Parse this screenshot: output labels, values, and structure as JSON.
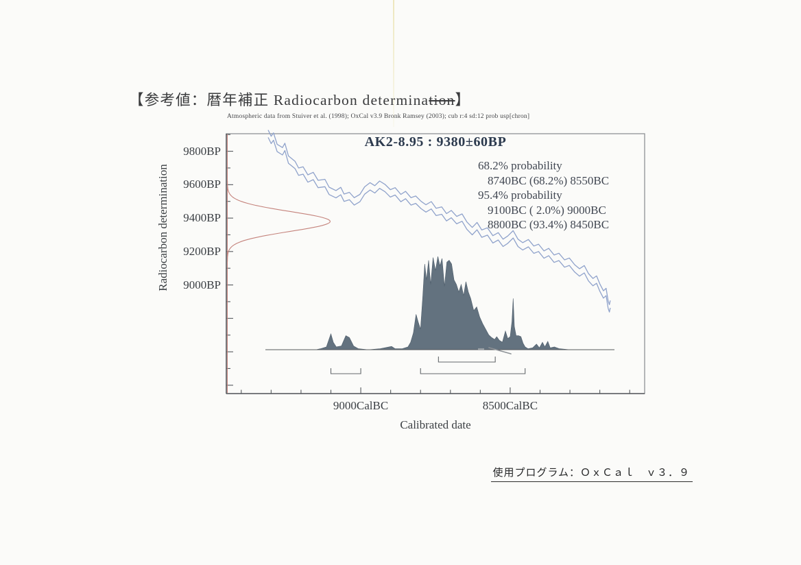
{
  "page": {
    "title": {
      "prefix": "【参考値：暦年補正 Radiocarbon determina",
      "struck": "tion",
      "suffix": "】"
    },
    "footer": {
      "text": "使用プログラム：ＯｘＣａｌ　ｖ３．９"
    }
  },
  "chart": {
    "attribution": "Atmospheric data from Stuiver et al. (1998); OxCal v3.9 Bronk Ramsey (2003); cub r:4 sd:12 prob usp[chron]",
    "title": "AK2-8.95 : 9380±60BP",
    "probability_lines": [
      {
        "text": "68.2% probability",
        "indent": false
      },
      {
        "text": "8740BC (68.2%) 8550BC",
        "indent": true
      },
      {
        "text": "95.4% probability",
        "indent": false
      },
      {
        "text": "9100BC ( 2.0%) 9000BC",
        "indent": true
      },
      {
        "text": "8800BC (93.4%) 8450BC",
        "indent": true
      }
    ],
    "x_axis_title": "Calibrated date",
    "y_axis_title": "Radiocarbon determination"
  },
  "chart_data": {
    "type": "area",
    "title": "AK2-8.95 : 9380±60BP",
    "xlabel": "Calibrated date",
    "ylabel": "Radiocarbon determination",
    "x_axis": {
      "unit": "CalBC",
      "range": [
        9450,
        8050
      ],
      "minor_tick_step": 100,
      "major_tick_step": 500,
      "major_ticks": [
        {
          "value": 9000,
          "label": "9000CalBC"
        },
        {
          "value": 8500,
          "label": "8500CalBC"
        }
      ]
    },
    "y_axis": {
      "unit": "BP",
      "range": [
        9905,
        8350
      ],
      "minor_tick_step": 100,
      "major_tick_step": 200,
      "labeled_ticks": [
        {
          "value": 9800,
          "label": "9800BP"
        },
        {
          "value": 9600,
          "label": "9600BP"
        },
        {
          "value": 9400,
          "label": "9400BP"
        },
        {
          "value": 9200,
          "label": "9200BP"
        },
        {
          "value": 9000,
          "label": "9000BP"
        }
      ]
    },
    "radiocarbon_determination": {
      "mean_bp": 9380,
      "sigma_bp": 60,
      "color": "#c4827b"
    },
    "calibration_curve": {
      "color": "#8fa2cb",
      "band_halfwidth_bp": 22,
      "points": [
        [
          9310,
          9905
        ],
        [
          9300,
          9868
        ],
        [
          9292,
          9888
        ],
        [
          9280,
          9820
        ],
        [
          9262,
          9800
        ],
        [
          9254,
          9826
        ],
        [
          9242,
          9750
        ],
        [
          9220,
          9718
        ],
        [
          9208,
          9678
        ],
        [
          9193,
          9685
        ],
        [
          9177,
          9637
        ],
        [
          9159,
          9652
        ],
        [
          9143,
          9604
        ],
        [
          9120,
          9610
        ],
        [
          9106,
          9563
        ],
        [
          9083,
          9543
        ],
        [
          9067,
          9562
        ],
        [
          9056,
          9522
        ],
        [
          9038,
          9532
        ],
        [
          9022,
          9500
        ],
        [
          9003,
          9520
        ],
        [
          8987,
          9565
        ],
        [
          8969,
          9590
        ],
        [
          8953,
          9572
        ],
        [
          8937,
          9600
        ],
        [
          8919,
          9580
        ],
        [
          8901,
          9548
        ],
        [
          8885,
          9560
        ],
        [
          8866,
          9520
        ],
        [
          8850,
          9538
        ],
        [
          8832,
          9500
        ],
        [
          8816,
          9510
        ],
        [
          8798,
          9478
        ],
        [
          8782,
          9458
        ],
        [
          8764,
          9477
        ],
        [
          8748,
          9437
        ],
        [
          8729,
          9445
        ],
        [
          8713,
          9405
        ],
        [
          8697,
          9424
        ],
        [
          8679,
          9388
        ],
        [
          8661,
          9403
        ],
        [
          8645,
          9355
        ],
        [
          8627,
          9322
        ],
        [
          8611,
          9352
        ],
        [
          8595,
          9307
        ],
        [
          8576,
          9320
        ],
        [
          8558,
          9273
        ],
        [
          8540,
          9291
        ],
        [
          8524,
          9252
        ],
        [
          8508,
          9271
        ],
        [
          8490,
          9303
        ],
        [
          8474,
          9252
        ],
        [
          8458,
          9231
        ],
        [
          8439,
          9250
        ],
        [
          8421,
          9211
        ],
        [
          8405,
          9222
        ],
        [
          8387,
          9182
        ],
        [
          8371,
          9197
        ],
        [
          8353,
          9157
        ],
        [
          8337,
          9168
        ],
        [
          8318,
          9128
        ],
        [
          8302,
          9139
        ],
        [
          8284,
          9099
        ],
        [
          8268,
          9075
        ],
        [
          8252,
          9094
        ],
        [
          8238,
          9046
        ],
        [
          8223,
          9017
        ],
        [
          8211,
          9032
        ],
        [
          8200,
          8985
        ],
        [
          8188,
          8943
        ],
        [
          8179,
          8958
        ],
        [
          8172,
          8882
        ],
        [
          8168,
          8860
        ],
        [
          8165,
          8885
        ]
      ]
    },
    "calibrated_distribution": {
      "color": "#5d6c7a",
      "baseline_bp": 8613,
      "peak_bp": 9170,
      "points": [
        [
          9150,
          0
        ],
        [
          9135,
          0.01
        ],
        [
          9115,
          0.03
        ],
        [
          9100,
          0.17
        ],
        [
          9092,
          0.08
        ],
        [
          9082,
          0.03
        ],
        [
          9065,
          0.04
        ],
        [
          9050,
          0.15
        ],
        [
          9038,
          0.13
        ],
        [
          9024,
          0.04
        ],
        [
          9008,
          0.01
        ],
        [
          8975,
          0
        ],
        [
          8935,
          0.01
        ],
        [
          8897,
          0.035
        ],
        [
          8885,
          0.01
        ],
        [
          8862,
          0.01
        ],
        [
          8842,
          0.03
        ],
        [
          8833,
          0.08
        ],
        [
          8824,
          0.18
        ],
        [
          8815,
          0.38
        ],
        [
          8808,
          0.3
        ],
        [
          8800,
          0.22
        ],
        [
          8793,
          0.55
        ],
        [
          8786,
          0.92
        ],
        [
          8780,
          0.75
        ],
        [
          8773,
          0.96
        ],
        [
          8766,
          0.7
        ],
        [
          8758,
          0.99
        ],
        [
          8750,
          0.85
        ],
        [
          8742,
          1.0
        ],
        [
          8735,
          0.9
        ],
        [
          8728,
          0.98
        ],
        [
          8720,
          0.68
        ],
        [
          8712,
          0.94
        ],
        [
          8704,
          0.96
        ],
        [
          8696,
          0.92
        ],
        [
          8688,
          0.75
        ],
        [
          8680,
          0.7
        ],
        [
          8672,
          0.62
        ],
        [
          8664,
          0.7
        ],
        [
          8656,
          0.58
        ],
        [
          8648,
          0.73
        ],
        [
          8640,
          0.62
        ],
        [
          8632,
          0.55
        ],
        [
          8622,
          0.42
        ],
        [
          8612,
          0.46
        ],
        [
          8602,
          0.35
        ],
        [
          8592,
          0.28
        ],
        [
          8582,
          0.22
        ],
        [
          8572,
          0.16
        ],
        [
          8562,
          0.13
        ],
        [
          8552,
          0.11
        ],
        [
          8545,
          0.14
        ],
        [
          8536,
          0.1
        ],
        [
          8526,
          0.08
        ],
        [
          8516,
          0.2
        ],
        [
          8508,
          0.12
        ],
        [
          8500,
          0.14
        ],
        [
          8494,
          0.3
        ],
        [
          8490,
          0.55
        ],
        [
          8486,
          0.25
        ],
        [
          8480,
          0.15
        ],
        [
          8472,
          0.15
        ],
        [
          8464,
          0.14
        ],
        [
          8457,
          0.07
        ],
        [
          8450,
          0.03
        ],
        [
          8440,
          0.01
        ],
        [
          8425,
          0.02
        ],
        [
          8412,
          0.06
        ],
        [
          8402,
          0.02
        ],
        [
          8392,
          0.08
        ],
        [
          8384,
          0.03
        ],
        [
          8374,
          0.09
        ],
        [
          8366,
          0.02
        ],
        [
          8352,
          0.03
        ],
        [
          8335,
          0.01
        ],
        [
          8300,
          0
        ]
      ]
    },
    "ranges": [
      {
        "probability": "68.2%",
        "from_bc": 8740,
        "to_bc": 8550,
        "level": 1
      },
      {
        "probability": "2.0%",
        "from_bc": 9100,
        "to_bc": 9000,
        "level": 2
      },
      {
        "probability": "93.4%",
        "from_bc": 8800,
        "to_bc": 8450,
        "level": 2
      }
    ]
  }
}
